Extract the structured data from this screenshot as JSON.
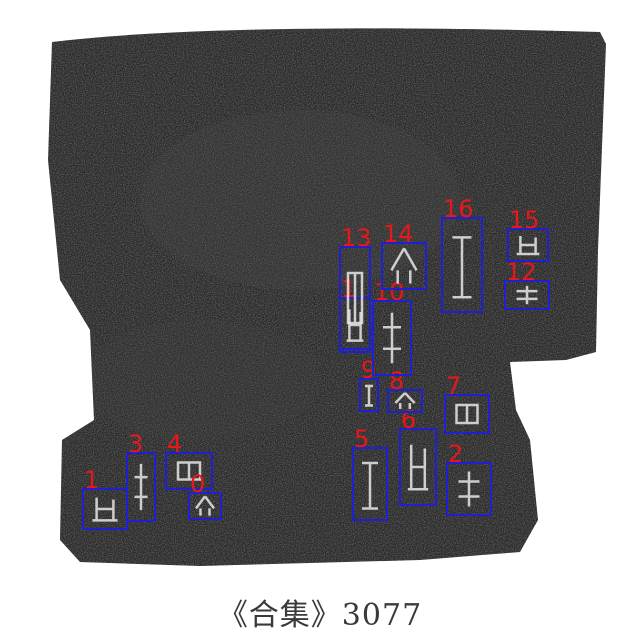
{
  "caption": "《合集》3077",
  "colors": {
    "box": "#1f1fd6",
    "label": "#e81818",
    "rubbing": "#2b2b2b",
    "glyph": "#e8e8e8"
  },
  "boxes": [
    {
      "label": "1"
    },
    {
      "label": "3"
    },
    {
      "label": "4"
    },
    {
      "label": "0"
    },
    {
      "label": "5"
    },
    {
      "label": "6"
    },
    {
      "label": "2"
    },
    {
      "label": "7"
    },
    {
      "label": "8"
    },
    {
      "label": "9"
    },
    {
      "label": "1"
    },
    {
      "label": "10"
    },
    {
      "label": "13"
    },
    {
      "label": "14"
    },
    {
      "label": "16"
    },
    {
      "label": "15"
    },
    {
      "label": "12"
    }
  ]
}
